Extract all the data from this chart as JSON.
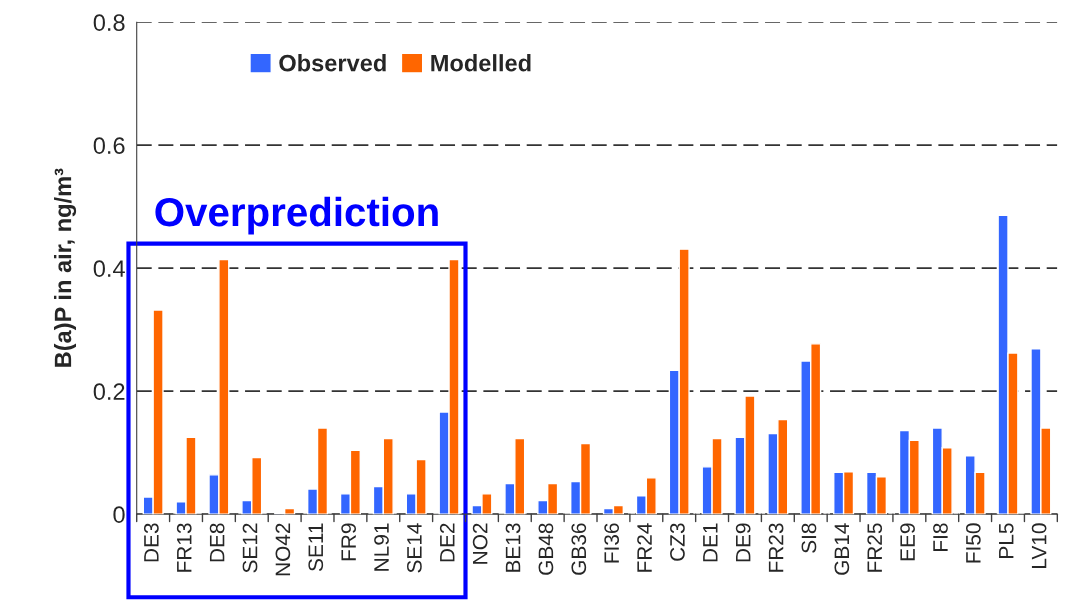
{
  "chart_data": {
    "type": "bar",
    "ylabel": "B(a)P in air, ng/m³",
    "categories": [
      "DE3",
      "FR13",
      "DE8",
      "SE12",
      "NO42",
      "SE11",
      "FR9",
      "NL91",
      "SE14",
      "DE2",
      "NO2",
      "BE13",
      "GB48",
      "GB36",
      "FI36",
      "FR24",
      "CZ3",
      "DE1",
      "DE9",
      "FR23",
      "SI8",
      "GB14",
      "FR25",
      "EE9",
      "FI8",
      "FI50",
      "PL5",
      "LV10"
    ],
    "series": [
      {
        "name": "Observed",
        "color": "#3366ff",
        "values": [
          0.028,
          0.02,
          0.064,
          0.022,
          0.002,
          0.041,
          0.033,
          0.045,
          0.033,
          0.166,
          0.014,
          0.05,
          0.022,
          0.053,
          0.009,
          0.03,
          0.234,
          0.077,
          0.125,
          0.131,
          0.249,
          0.068,
          0.068,
          0.136,
          0.14,
          0.095,
          0.486,
          0.269
        ]
      },
      {
        "name": "Modelled",
        "color": "#ff6600",
        "values": [
          0.332,
          0.125,
          0.414,
          0.092,
          0.009,
          0.14,
          0.104,
          0.123,
          0.089,
          0.414,
          0.033,
          0.123,
          0.05,
          0.115,
          0.014,
          0.059,
          0.431,
          0.123,
          0.192,
          0.154,
          0.277,
          0.069,
          0.061,
          0.12,
          0.108,
          0.068,
          0.262,
          0.14
        ]
      }
    ],
    "ylim": [
      0,
      0.8
    ],
    "yticks": [
      0,
      0.2,
      0.4,
      0.6,
      0.8
    ],
    "grid": "y",
    "legend": "top left",
    "annotations": [
      "Overprediction"
    ]
  }
}
